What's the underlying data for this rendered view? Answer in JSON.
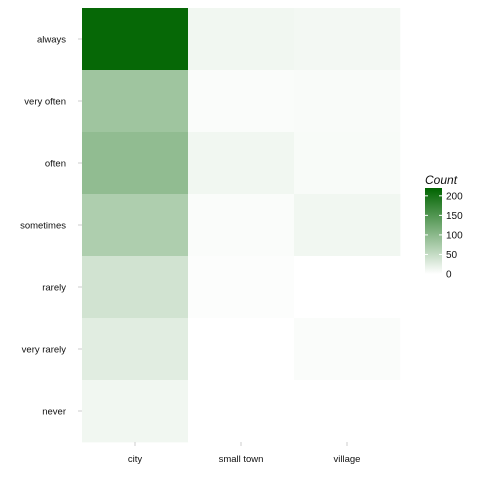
{
  "chart_data": {
    "type": "heatmap",
    "title": "",
    "xlabel": "",
    "ylabel": "",
    "x_categories": [
      "city",
      "small town",
      "village"
    ],
    "y_categories": [
      "always",
      "very often",
      "often",
      "sometimes",
      "rarely",
      "very rarely",
      "never"
    ],
    "values": [
      [
        215,
        12,
        10
      ],
      [
        83,
        4,
        5
      ],
      [
        95,
        12,
        6
      ],
      [
        70,
        4,
        12
      ],
      [
        40,
        3,
        0
      ],
      [
        26,
        0,
        4
      ],
      [
        12,
        0,
        0
      ]
    ],
    "color_low": "#ffffff",
    "color_high": "#006400",
    "legend": {
      "title": "Count",
      "ticks": [
        0,
        50,
        100,
        150,
        200
      ],
      "max": 220,
      "position": "right"
    },
    "grid": true
  }
}
